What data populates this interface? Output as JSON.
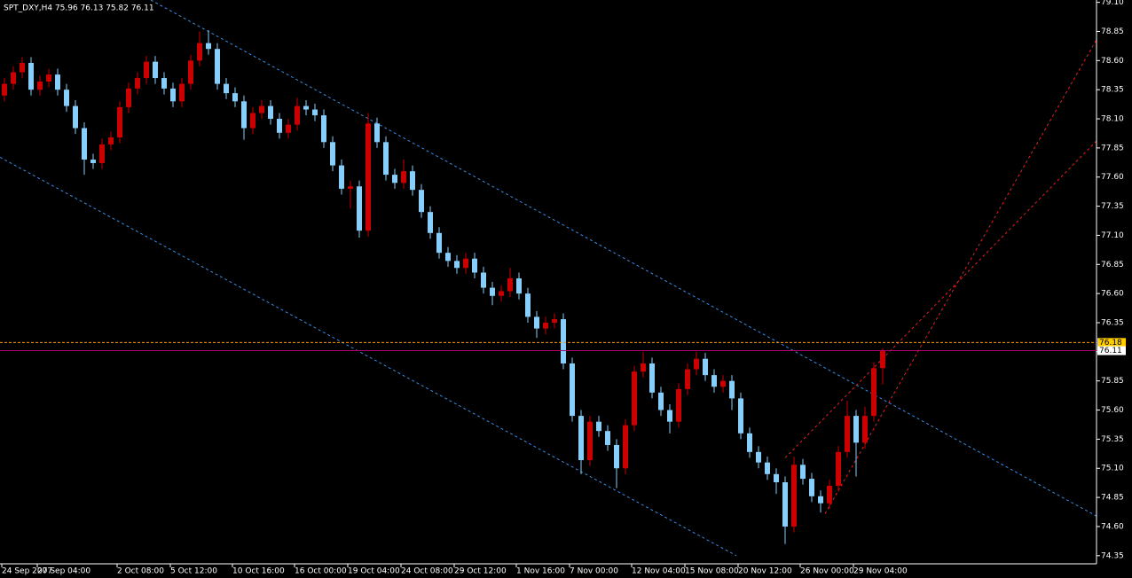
{
  "chart_data": {
    "type": "candlestick",
    "title": "SPT_DXY,H4  75.96 76.13 75.82 76.11",
    "up_color": "#cc0000",
    "down_color": "#87cefa",
    "categories": [
      "24 Sep 2007",
      null,
      null,
      null,
      "27 Sep 04:00",
      null,
      null,
      null,
      null,
      null,
      null,
      null,
      null,
      "2 Oct 08:00",
      null,
      null,
      null,
      null,
      null,
      "5 Oct 12:00",
      null,
      null,
      null,
      null,
      null,
      null,
      "10 Oct 16:00",
      null,
      null,
      null,
      null,
      null,
      null,
      "16 Oct 00:00",
      null,
      null,
      null,
      null,
      null,
      "19 Oct 04:00",
      null,
      null,
      null,
      null,
      null,
      "24 Oct 08:00",
      null,
      null,
      null,
      null,
      null,
      "29 Oct 12:00",
      null,
      null,
      null,
      null,
      null,
      null,
      "1 Nov 16:00",
      null,
      null,
      null,
      null,
      null,
      "7 Nov 00:00",
      null,
      null,
      null,
      null,
      null,
      null,
      "12 Nov 04:00",
      null,
      null,
      null,
      null,
      null,
      "15 Nov 08:00",
      null,
      null,
      null,
      null,
      null,
      "20 Nov 12:00",
      null,
      null,
      null,
      null,
      null,
      null,
      "26 Nov 00:00",
      null,
      null,
      null,
      null,
      null,
      "29 Nov 04:00",
      null,
      null,
      null
    ],
    "open": [
      78.3,
      78.4,
      78.5,
      78.58,
      78.35,
      78.42,
      78.48,
      78.35,
      78.21,
      78.02,
      77.75,
      77.72,
      77.88,
      77.94,
      78.2,
      78.36,
      78.45,
      78.59,
      78.45,
      78.36,
      78.25,
      78.4,
      78.6,
      78.75,
      78.7,
      78.4,
      78.32,
      78.25,
      78.02,
      78.15,
      78.21,
      78.1,
      77.98,
      78.05,
      78.21,
      78.18,
      78.13,
      77.9,
      77.7,
      77.5,
      77.52,
      77.14,
      78.06,
      77.9,
      77.62,
      77.55,
      77.65,
      77.49,
      77.3,
      77.12,
      76.95,
      76.88,
      76.82,
      76.9,
      76.78,
      76.65,
      76.58,
      76.62,
      76.73,
      76.6,
      76.4,
      76.3,
      76.35,
      76.38,
      76.0,
      75.55,
      75.17,
      75.5,
      75.42,
      75.3,
      75.1,
      75.47,
      75.93,
      76.0,
      75.75,
      75.6,
      75.5,
      75.78,
      75.95,
      76.04,
      75.9,
      75.8,
      75.85,
      75.7,
      75.4,
      75.24,
      75.15,
      75.05,
      74.98,
      74.6,
      75.13,
      75.01,
      74.86,
      74.8,
      74.95,
      75.24,
      75.55,
      75.32,
      75.55,
      75.96
    ],
    "high": [
      78.45,
      78.55,
      78.63,
      78.63,
      78.47,
      78.53,
      78.53,
      78.4,
      78.26,
      78.07,
      77.8,
      77.93,
      77.99,
      78.25,
      78.41,
      78.5,
      78.64,
      78.64,
      78.5,
      78.41,
      78.45,
      78.65,
      78.85,
      78.86,
      78.75,
      78.45,
      78.37,
      78.3,
      78.2,
      78.26,
      78.26,
      78.15,
      78.1,
      78.28,
      78.26,
      78.23,
      78.18,
      77.95,
      77.75,
      77.57,
      77.57,
      78.15,
      78.11,
      77.95,
      77.67,
      77.75,
      77.7,
      77.54,
      77.35,
      77.17,
      77.0,
      76.93,
      76.95,
      76.95,
      76.83,
      76.7,
      76.67,
      76.82,
      76.78,
      76.65,
      76.45,
      76.4,
      76.43,
      76.43,
      76.05,
      75.6,
      75.55,
      75.55,
      75.47,
      75.35,
      75.52,
      75.98,
      76.1,
      76.05,
      75.8,
      75.65,
      75.83,
      76.0,
      76.1,
      76.09,
      75.95,
      75.9,
      75.9,
      75.75,
      75.45,
      75.29,
      75.2,
      75.1,
      75.03,
      75.2,
      75.18,
      75.06,
      74.91,
      75.0,
      75.29,
      75.68,
      75.6,
      75.63,
      76.01,
      76.13
    ],
    "low": [
      78.25,
      78.35,
      78.45,
      78.3,
      78.3,
      78.37,
      78.3,
      78.16,
      77.97,
      77.62,
      77.67,
      77.67,
      77.83,
      77.89,
      78.15,
      78.31,
      78.4,
      78.4,
      78.31,
      78.2,
      78.2,
      78.35,
      78.55,
      78.65,
      78.35,
      78.27,
      78.2,
      77.92,
      77.97,
      78.1,
      78.05,
      77.93,
      77.93,
      78.0,
      78.13,
      78.08,
      77.85,
      77.65,
      77.45,
      77.33,
      77.08,
      77.09,
      77.85,
      77.57,
      77.5,
      77.5,
      77.44,
      77.25,
      77.07,
      76.9,
      76.83,
      76.77,
      76.77,
      76.73,
      76.6,
      76.5,
      76.53,
      76.57,
      76.55,
      76.35,
      76.22,
      76.25,
      76.3,
      75.95,
      75.5,
      75.05,
      75.12,
      75.37,
      75.25,
      74.93,
      75.05,
      75.42,
      75.88,
      75.7,
      75.55,
      75.4,
      75.45,
      75.73,
      75.9,
      75.85,
      75.75,
      75.75,
      75.6,
      75.35,
      75.19,
      75.1,
      75.0,
      74.88,
      74.45,
      74.55,
      74.96,
      74.81,
      74.72,
      74.75,
      74.9,
      75.19,
      75.03,
      75.27,
      75.5,
      75.82
    ],
    "close": [
      78.4,
      78.5,
      78.58,
      78.35,
      78.42,
      78.48,
      78.35,
      78.21,
      78.02,
      77.75,
      77.72,
      77.88,
      77.94,
      78.2,
      78.36,
      78.45,
      78.59,
      78.45,
      78.36,
      78.25,
      78.4,
      78.6,
      78.75,
      78.7,
      78.4,
      78.32,
      78.25,
      78.02,
      78.15,
      78.21,
      78.1,
      77.98,
      78.05,
      78.21,
      78.18,
      78.13,
      77.9,
      77.7,
      77.5,
      77.52,
      77.14,
      78.06,
      77.9,
      77.62,
      77.55,
      77.65,
      77.49,
      77.3,
      77.12,
      76.95,
      76.88,
      76.82,
      76.9,
      76.78,
      76.65,
      76.58,
      76.62,
      76.73,
      76.6,
      76.4,
      76.3,
      76.35,
      76.38,
      76.0,
      75.55,
      75.17,
      75.5,
      75.42,
      75.3,
      75.1,
      75.47,
      75.93,
      76.0,
      75.75,
      75.6,
      75.5,
      75.78,
      75.95,
      76.04,
      75.9,
      75.8,
      75.85,
      75.7,
      75.4,
      75.24,
      75.15,
      75.05,
      74.98,
      74.6,
      75.13,
      75.01,
      74.86,
      74.8,
      74.95,
      75.24,
      75.55,
      75.32,
      75.55,
      75.96,
      76.11
    ],
    "ylim": [
      74.28,
      79.12
    ],
    "yticks": [
      {
        "value": 79.1,
        "label": "79.10"
      },
      78.85,
      {
        "value": 78.6,
        "label": "78.60"
      },
      78.35,
      {
        "value": 78.1,
        "label": "78.10"
      },
      77.85,
      {
        "value": 77.6,
        "label": "77.60"
      },
      77.35,
      {
        "value": 77.1,
        "label": "77.10"
      },
      76.85,
      {
        "value": 76.6,
        "label": "76.60"
      },
      76.35,
      {
        "value": 76.1,
        "label": "76.10"
      },
      75.85,
      {
        "value": 75.6,
        "label": "75.60"
      },
      75.35,
      {
        "value": 75.1,
        "label": "75.10"
      },
      74.85,
      {
        "value": 74.6,
        "label": "74.60"
      },
      74.35
    ],
    "hlines": [
      {
        "value": 76.18,
        "color": "#ff9900",
        "style": "dashed",
        "label_bg": "#ffcc00"
      },
      {
        "value": 76.11,
        "color": "#b0006e",
        "style": "solid",
        "label_bg": "#ffffff"
      }
    ],
    "trend_lines": [
      {
        "color": "#3a8ee6",
        "style": "dashed",
        "x": [
          16.5,
          123.1
        ],
        "y": [
          79.12,
          74.69
        ]
      },
      {
        "color": "#3a8ee6",
        "style": "dashed",
        "x": [
          -0.5,
          82.5
        ],
        "y": [
          77.77,
          74.35
        ]
      },
      {
        "color": "#dd2222",
        "style": "dashed",
        "x": [
          92.5,
          123.1
        ],
        "y": [
          74.71,
          78.78
        ]
      },
      {
        "color": "#dd2222",
        "style": "dashed",
        "x": [
          88,
          123.1
        ],
        "y": [
          75.19,
          77.91
        ]
      }
    ]
  }
}
